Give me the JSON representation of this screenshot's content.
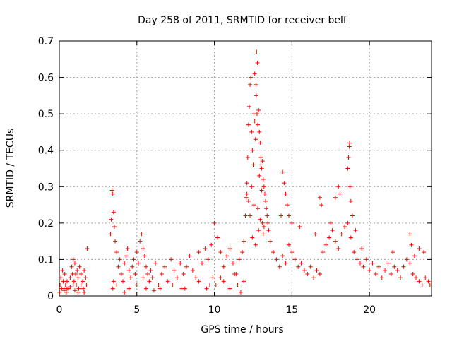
{
  "chart_data": {
    "type": "scatter",
    "title": "Day 258 of 2011, SRMTID for receiver belf",
    "xlabel": "GPS time / hours",
    "ylabel": "SRMTID / TECUs",
    "xlim": [
      0,
      24
    ],
    "ylim": [
      0,
      0.7
    ],
    "xticks": [
      0,
      5,
      10,
      15,
      20
    ],
    "xtick_labels": [
      "0",
      "5",
      "10",
      "15",
      "20"
    ],
    "yticks": [
      0,
      0.1,
      0.2,
      0.3,
      0.4,
      0.5,
      0.6,
      0.7
    ],
    "ytick_labels": [
      "0",
      "0.1",
      "0.2",
      "0.3",
      "0.4",
      "0.5",
      "0.6",
      "0.7"
    ],
    "grid": true,
    "marker": "+",
    "color": "#ff0000",
    "series": [
      {
        "name": "SRMTID",
        "x": [
          0.02,
          0.05,
          0.1,
          0.15,
          0.2,
          0.25,
          0.3,
          0.35,
          0.4,
          0.45,
          0.5,
          0.6,
          0.7,
          0.8,
          0.85,
          0.9,
          0.95,
          1.0,
          1.05,
          1.1,
          1.15,
          1.2,
          1.25,
          1.3,
          1.4,
          1.5,
          1.55,
          1.6,
          1.7,
          1.75,
          1.8,
          0.3,
          0.9,
          1.6,
          0.5,
          1.2,
          0.7,
          1.4,
          1.0,
          3.3,
          3.35,
          3.4,
          3.45,
          3.5,
          3.55,
          3.6,
          3.7,
          3.8,
          3.9,
          4.0,
          4.1,
          4.2,
          4.3,
          4.4,
          4.5,
          4.6,
          4.7,
          4.8,
          4.9,
          5.0,
          5.1,
          5.2,
          5.3,
          5.4,
          5.5,
          5.6,
          5.7,
          5.8,
          5.9,
          6.0,
          6.2,
          6.4,
          6.6,
          6.8,
          7.0,
          7.2,
          7.4,
          7.6,
          7.8,
          8.0,
          8.2,
          8.4,
          8.6,
          8.8,
          9.0,
          9.2,
          9.4,
          9.6,
          9.8,
          10.0,
          10.2,
          10.4,
          10.6,
          10.8,
          11.0,
          11.2,
          11.4,
          11.6,
          11.8,
          3.45,
          3.5,
          3.7,
          4.5,
          5.0,
          5.4,
          5.6,
          6.5,
          7.3,
          8.1,
          9.0,
          9.5,
          9.9,
          10.1,
          10.6,
          11.0,
          11.3,
          11.5,
          11.7,
          4.2,
          6.1,
          7.9,
          9.7,
          10.4,
          11.9,
          11.9,
          12.0,
          12.05,
          12.1,
          12.15,
          12.2,
          12.25,
          12.3,
          12.35,
          12.4,
          12.45,
          12.5,
          12.55,
          12.6,
          12.65,
          12.7,
          12.75,
          12.8,
          12.85,
          12.9,
          12.95,
          13.0,
          13.05,
          13.1,
          13.15,
          13.2,
          13.25,
          13.3,
          13.35,
          13.4,
          13.45,
          13.5,
          12.72,
          12.78,
          12.6,
          12.68,
          12.4,
          12.9,
          13.0,
          12.1,
          12.55,
          13.1,
          12.3,
          13.2,
          12.2,
          12.8,
          13.05,
          12.45,
          12.65,
          12.85,
          12.95,
          13.15,
          13.6,
          13.8,
          14.0,
          14.2,
          14.4,
          14.6,
          14.8,
          15.0,
          15.2,
          15.4,
          15.6,
          15.8,
          16.0,
          16.2,
          16.4,
          16.6,
          16.8,
          17.0,
          17.2,
          17.4,
          17.6,
          17.8,
          18.0,
          18.2,
          18.4,
          18.6,
          18.8,
          19.0,
          19.2,
          19.4,
          19.6,
          19.8,
          20.0,
          20.2,
          20.4,
          20.6,
          20.8,
          21.0,
          21.2,
          21.4,
          21.6,
          21.8,
          22.0,
          22.2,
          22.4,
          22.6,
          22.8,
          23.0,
          23.2,
          23.4,
          23.6,
          23.8,
          23.9,
          14.4,
          14.5,
          14.6,
          14.7,
          14.8,
          15.0,
          16.8,
          16.9,
          17.5,
          17.8,
          18.0,
          18.1,
          18.6,
          18.65,
          18.7,
          18.72,
          18.75,
          18.8,
          18.9,
          19.1,
          22.6,
          22.7,
          23.2,
          23.5,
          14.3,
          15.5,
          16.5,
          19.5,
          21.5,
          22.9
        ],
        "y": [
          0.01,
          0.03,
          0.05,
          0.02,
          0.07,
          0.04,
          0.02,
          0.06,
          0.03,
          0.01,
          0.04,
          0.02,
          0.05,
          0.08,
          0.06,
          0.1,
          0.04,
          0.09,
          0.06,
          0.03,
          0.07,
          0.05,
          0.02,
          0.08,
          0.06,
          0.04,
          0.02,
          0.07,
          0.05,
          0.03,
          0.13,
          0.015,
          0.03,
          0.01,
          0.02,
          0.01,
          0.025,
          0.03,
          0.015,
          0.17,
          0.21,
          0.29,
          0.28,
          0.23,
          0.19,
          0.15,
          0.12,
          0.08,
          0.1,
          0.06,
          0.04,
          0.09,
          0.11,
          0.13,
          0.07,
          0.05,
          0.08,
          0.1,
          0.06,
          0.12,
          0.09,
          0.15,
          0.17,
          0.13,
          0.11,
          0.08,
          0.06,
          0.04,
          0.07,
          0.05,
          0.09,
          0.03,
          0.06,
          0.08,
          0.04,
          0.1,
          0.07,
          0.05,
          0.09,
          0.06,
          0.08,
          0.11,
          0.07,
          0.05,
          0.12,
          0.09,
          0.13,
          0.1,
          0.14,
          0.2,
          0.16,
          0.12,
          0.08,
          0.11,
          0.13,
          0.09,
          0.06,
          0.1,
          0.12,
          0.02,
          0.04,
          0.03,
          0.02,
          0.03,
          0.05,
          0.02,
          0.02,
          0.03,
          0.02,
          0.04,
          0.02,
          0.05,
          0.03,
          0.04,
          0.02,
          0.06,
          0.03,
          0.01,
          0.01,
          0.015,
          0.02,
          0.03,
          0.05,
          0.04,
          0.15,
          0.22,
          0.27,
          0.31,
          0.38,
          0.47,
          0.52,
          0.58,
          0.6,
          0.45,
          0.4,
          0.36,
          0.5,
          0.48,
          0.43,
          0.55,
          0.5,
          0.47,
          0.51,
          0.45,
          0.42,
          0.38,
          0.35,
          0.37,
          0.32,
          0.3,
          0.28,
          0.26,
          0.24,
          0.22,
          0.2,
          0.18,
          0.67,
          0.64,
          0.61,
          0.58,
          0.3,
          0.33,
          0.36,
          0.28,
          0.25,
          0.2,
          0.22,
          0.19,
          0.26,
          0.24,
          0.29,
          0.16,
          0.14,
          0.18,
          0.21,
          0.17,
          0.15,
          0.12,
          0.1,
          0.08,
          0.11,
          0.09,
          0.14,
          0.12,
          0.1,
          0.08,
          0.09,
          0.07,
          0.06,
          0.08,
          0.05,
          0.07,
          0.06,
          0.12,
          0.14,
          0.16,
          0.18,
          0.15,
          0.13,
          0.17,
          0.19,
          0.2,
          0.16,
          0.12,
          0.1,
          0.09,
          0.08,
          0.1,
          0.07,
          0.09,
          0.06,
          0.08,
          0.05,
          0.07,
          0.09,
          0.06,
          0.08,
          0.07,
          0.05,
          0.08,
          0.1,
          0.09,
          0.06,
          0.05,
          0.04,
          0.03,
          0.05,
          0.04,
          0.03,
          0.34,
          0.31,
          0.28,
          0.25,
          0.22,
          0.2,
          0.27,
          0.25,
          0.2,
          0.27,
          0.3,
          0.28,
          0.35,
          0.38,
          0.41,
          0.42,
          0.3,
          0.26,
          0.22,
          0.18,
          0.17,
          0.14,
          0.13,
          0.12,
          0.22,
          0.19,
          0.17,
          0.13,
          0.12,
          0.11
        ]
      }
    ]
  }
}
